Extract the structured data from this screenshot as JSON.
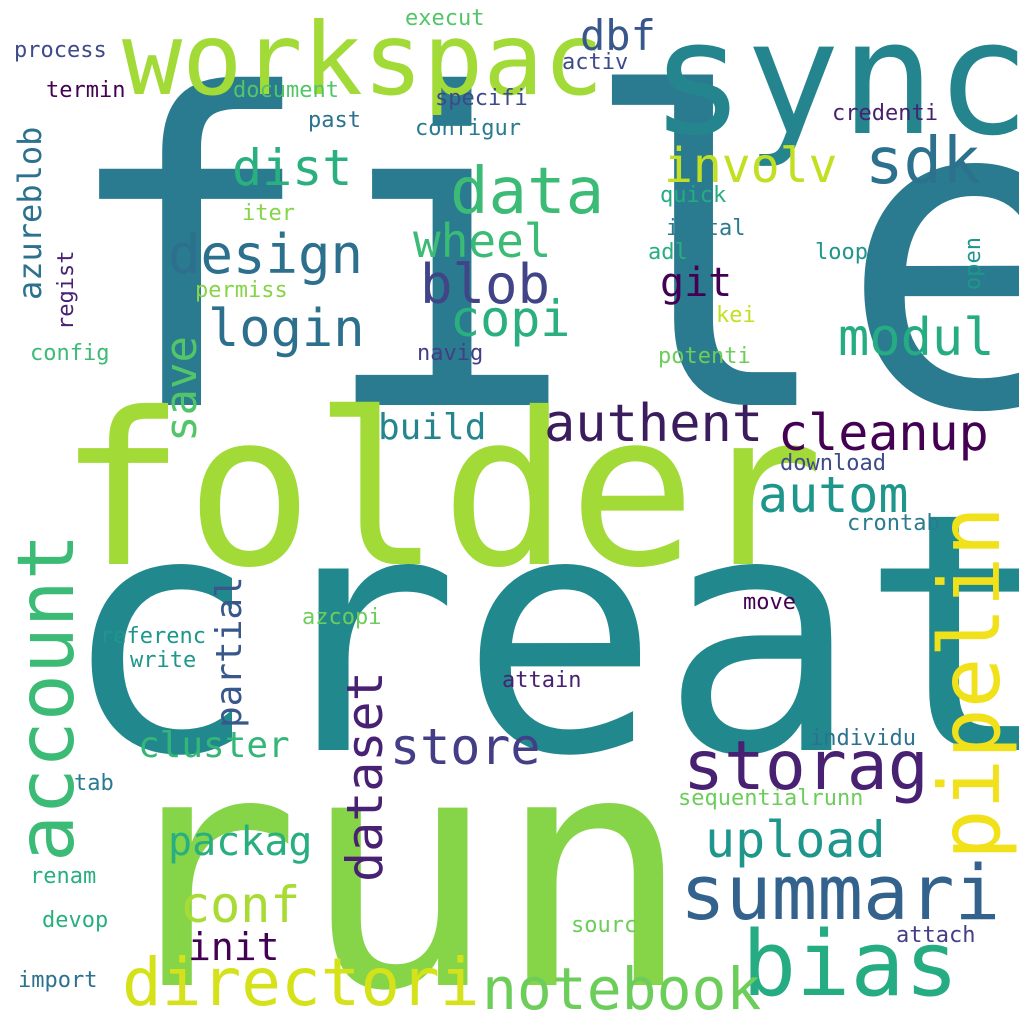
{
  "colors": {
    "background": "#ffffff",
    "palette": [
      "#fde725",
      "#c2df23",
      "#86d549",
      "#52c569",
      "#2ab07f",
      "#1e9b8a",
      "#25858e",
      "#2d708e",
      "#38588c",
      "#433e85",
      "#482173",
      "#440154"
    ]
  },
  "words": [
    {
      "text": "file",
      "color": "#2a7b8f"
    },
    {
      "text": "creat",
      "color": "#21898d"
    },
    {
      "text": "run",
      "color": "#86d549"
    },
    {
      "text": "folder",
      "color": "#a2da37"
    },
    {
      "text": "sync",
      "color": "#25858e"
    },
    {
      "text": "workspac",
      "color": "#a2da37"
    },
    {
      "text": "pipelin",
      "color": "#f0e11a"
    },
    {
      "text": "account",
      "color": "#3bbb75"
    },
    {
      "text": "summari",
      "color": "#33628d"
    },
    {
      "text": "bias",
      "color": "#25ac82"
    },
    {
      "text": "storag",
      "color": "#482173"
    },
    {
      "text": "directori",
      "color": "#d5e21a"
    },
    {
      "text": "data",
      "color": "#3bbb75"
    },
    {
      "text": "sdk",
      "color": "#2c728e"
    },
    {
      "text": "notebook",
      "color": "#6ccd5a"
    },
    {
      "text": "upload",
      "color": "#1f968b"
    },
    {
      "text": "involv",
      "color": "#c2df23"
    },
    {
      "text": "cleanup",
      "color": "#440154"
    },
    {
      "text": "authent",
      "color": "#3b1c5d"
    },
    {
      "text": "design",
      "color": "#2d708e"
    },
    {
      "text": "login",
      "color": "#2d708e"
    },
    {
      "text": "blob",
      "color": "#414487"
    },
    {
      "text": "wheel",
      "color": "#3bbb75"
    },
    {
      "text": "copi",
      "color": "#2ab07f"
    },
    {
      "text": "store",
      "color": "#433e85"
    },
    {
      "text": "autom",
      "color": "#1f968b"
    },
    {
      "text": "modul",
      "color": "#25ac82"
    },
    {
      "text": "dataset",
      "color": "#482173"
    },
    {
      "text": "conf",
      "color": "#a8db34"
    },
    {
      "text": "dist",
      "color": "#2ab07f"
    },
    {
      "text": "save",
      "color": "#52c569"
    },
    {
      "text": "packag",
      "color": "#29af7f"
    },
    {
      "text": "cluster",
      "color": "#34b679"
    },
    {
      "text": "partial",
      "color": "#38588c"
    },
    {
      "text": "init",
      "color": "#440154"
    },
    {
      "text": "build",
      "color": "#25858e"
    },
    {
      "text": "git",
      "color": "#440154"
    },
    {
      "text": "dbf",
      "color": "#38588c"
    },
    {
      "text": "azureblob",
      "color": "#2c728e"
    },
    {
      "text": "process",
      "color": "#3e4a89"
    },
    {
      "text": "execut",
      "color": "#52c569"
    },
    {
      "text": "termin",
      "color": "#440154"
    },
    {
      "text": "document",
      "color": "#52c569"
    },
    {
      "text": "activ",
      "color": "#3e4a89"
    },
    {
      "text": "specifi",
      "color": "#3e4a89"
    },
    {
      "text": "past",
      "color": "#2c728e"
    },
    {
      "text": "configur",
      "color": "#2a7b8f"
    },
    {
      "text": "credenti",
      "color": "#482173"
    },
    {
      "text": "quick",
      "color": "#25ac82"
    },
    {
      "text": "instal",
      "color": "#2a7b8f"
    },
    {
      "text": "adl",
      "color": "#29af7f"
    },
    {
      "text": "loop",
      "color": "#1f968b"
    },
    {
      "text": "open",
      "color": "#1f968b"
    },
    {
      "text": "iter",
      "color": "#86d549"
    },
    {
      "text": "regist",
      "color": "#482173"
    },
    {
      "text": "permiss",
      "color": "#86d549"
    },
    {
      "text": "kei",
      "color": "#c2df23"
    },
    {
      "text": "config",
      "color": "#3bbb75"
    },
    {
      "text": "navig",
      "color": "#433e85"
    },
    {
      "text": "potenti",
      "color": "#6ccd5a"
    },
    {
      "text": "download",
      "color": "#3e4a89"
    },
    {
      "text": "crontab",
      "color": "#2a7b8f"
    },
    {
      "text": "move",
      "color": "#440154"
    },
    {
      "text": "azcopi",
      "color": "#6ccd5a"
    },
    {
      "text": "referenc",
      "color": "#1f968b"
    },
    {
      "text": "write",
      "color": "#1f968b"
    },
    {
      "text": "attain",
      "color": "#482173"
    },
    {
      "text": "individu",
      "color": "#2c728e"
    },
    {
      "text": "tab",
      "color": "#2a7b8f"
    },
    {
      "text": "sequentialrunn",
      "color": "#6ccd5a"
    },
    {
      "text": "renam",
      "color": "#29af7f"
    },
    {
      "text": "sourc",
      "color": "#6ccd5a"
    },
    {
      "text": "devop",
      "color": "#29af7f"
    },
    {
      "text": "attach",
      "color": "#433e85"
    },
    {
      "text": "import",
      "color": "#2c728e"
    }
  ]
}
